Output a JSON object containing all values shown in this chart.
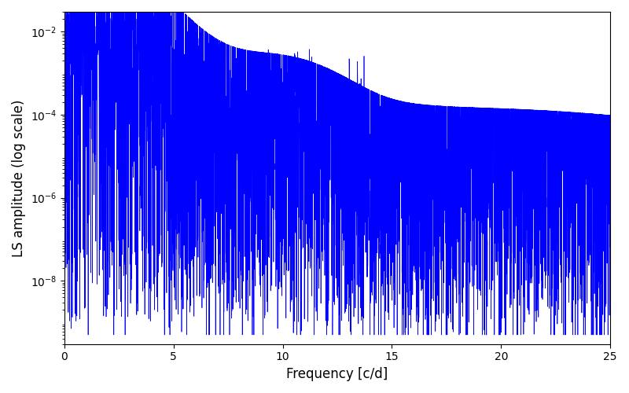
{
  "xlabel": "Frequency [c/d]",
  "ylabel": "LS amplitude (log scale)",
  "xlim": [
    0,
    25
  ],
  "ylim": [
    3e-10,
    0.03
  ],
  "line_color": "#0000ff",
  "line_width": 0.5,
  "yscale": "log",
  "figsize": [
    8.0,
    5.0
  ],
  "dpi": 100,
  "yticks": [
    1e-08,
    1e-06,
    0.0001,
    0.01
  ],
  "xticks": [
    0,
    5,
    10,
    15,
    20,
    25
  ],
  "background_color": "#ffffff",
  "freq_max": 25.0,
  "n_points": 6000
}
